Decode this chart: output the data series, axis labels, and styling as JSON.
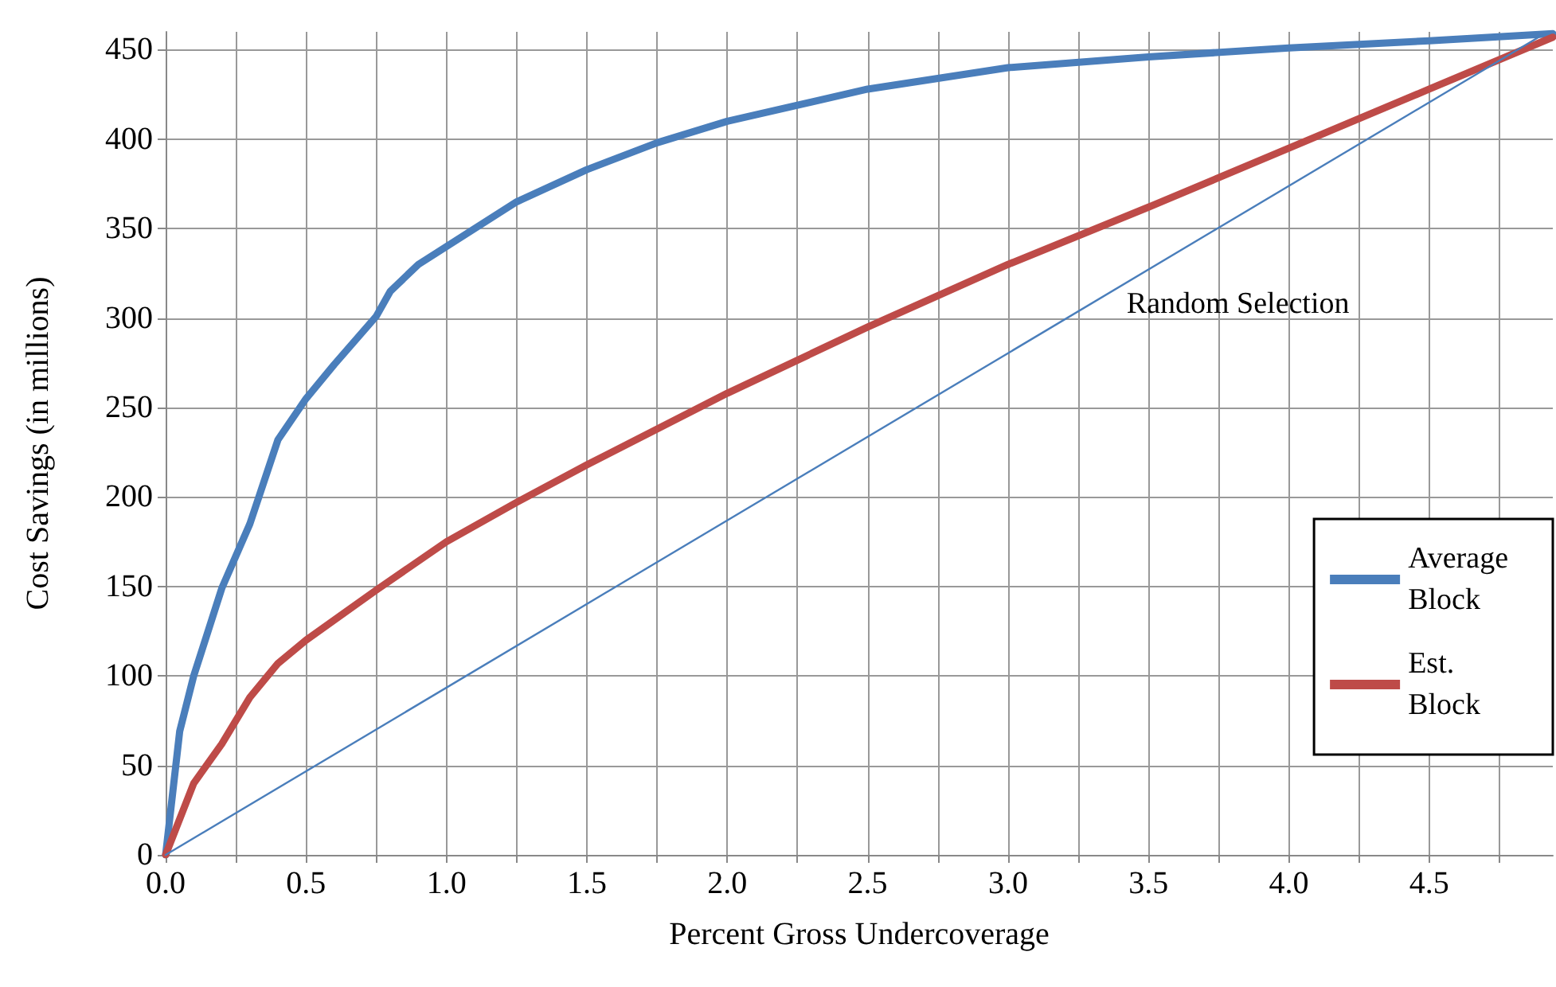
{
  "chart_data": {
    "type": "line",
    "xlabel": "Percent Gross Undercoverage",
    "ylabel": "Cost Savings (in millions)",
    "xlim": [
      0,
      4.94
    ],
    "ylim": [
      0,
      460
    ],
    "xticks": [
      {
        "value": 0,
        "label": "0.0"
      },
      {
        "value": 0.25,
        "label": null
      },
      {
        "value": 0.5,
        "label": "0.5"
      },
      {
        "value": 0.75,
        "label": null
      },
      {
        "value": 1,
        "label": "1.0"
      },
      {
        "value": 1.25,
        "label": null
      },
      {
        "value": 1.5,
        "label": "1.5"
      },
      {
        "value": 1.75,
        "label": null
      },
      {
        "value": 2,
        "label": "2.0"
      },
      {
        "value": 2.25,
        "label": null
      },
      {
        "value": 2.5,
        "label": "2.5"
      },
      {
        "value": 2.75,
        "label": null
      },
      {
        "value": 3,
        "label": "3.0"
      },
      {
        "value": 3.25,
        "label": null
      },
      {
        "value": 3.5,
        "label": "3.5"
      },
      {
        "value": 3.75,
        "label": null
      },
      {
        "value": 4,
        "label": "4.0"
      },
      {
        "value": 4.25,
        "label": null
      },
      {
        "value": 4.5,
        "label": "4.5"
      },
      {
        "value": 4.75,
        "label": null
      }
    ],
    "yticks": [
      0,
      50,
      100,
      150,
      200,
      250,
      300,
      350,
      400,
      450
    ],
    "grid": true,
    "legend": "bottom right",
    "marker": "none",
    "line_style": "solid",
    "series": [
      {
        "name": "Average Block",
        "color": "#4a7ebb",
        "x": [
          0,
          0.05,
          0.1,
          0.2,
          0.3,
          0.4,
          0.5,
          0.6,
          0.75,
          0.8,
          0.9,
          1.0,
          1.25,
          1.5,
          1.75,
          2.0,
          2.5,
          3.0,
          3.5,
          4.0,
          4.5,
          4.94
        ],
        "values": [
          0,
          69,
          100,
          149,
          185,
          232,
          255,
          274,
          301,
          315,
          330,
          340,
          365,
          383,
          398,
          410,
          428,
          440,
          446,
          451,
          455,
          459
        ]
      },
      {
        "name": "Est. Block",
        "color": "#be4b48",
        "x": [
          0,
          0.1,
          0.2,
          0.3,
          0.4,
          0.5,
          0.75,
          1.0,
          1.25,
          1.5,
          2.0,
          2.5,
          3.0,
          3.5,
          4.0,
          4.5,
          4.94
        ],
        "values": [
          0,
          40,
          62,
          88,
          107,
          120,
          148,
          175,
          197,
          218,
          258,
          295,
          330,
          362,
          395,
          428,
          457
        ]
      },
      {
        "name": "Random Selection",
        "color": "#4a7ebb",
        "x": [
          0,
          4.9
        ],
        "values": [
          0,
          458
        ]
      }
    ]
  }
}
